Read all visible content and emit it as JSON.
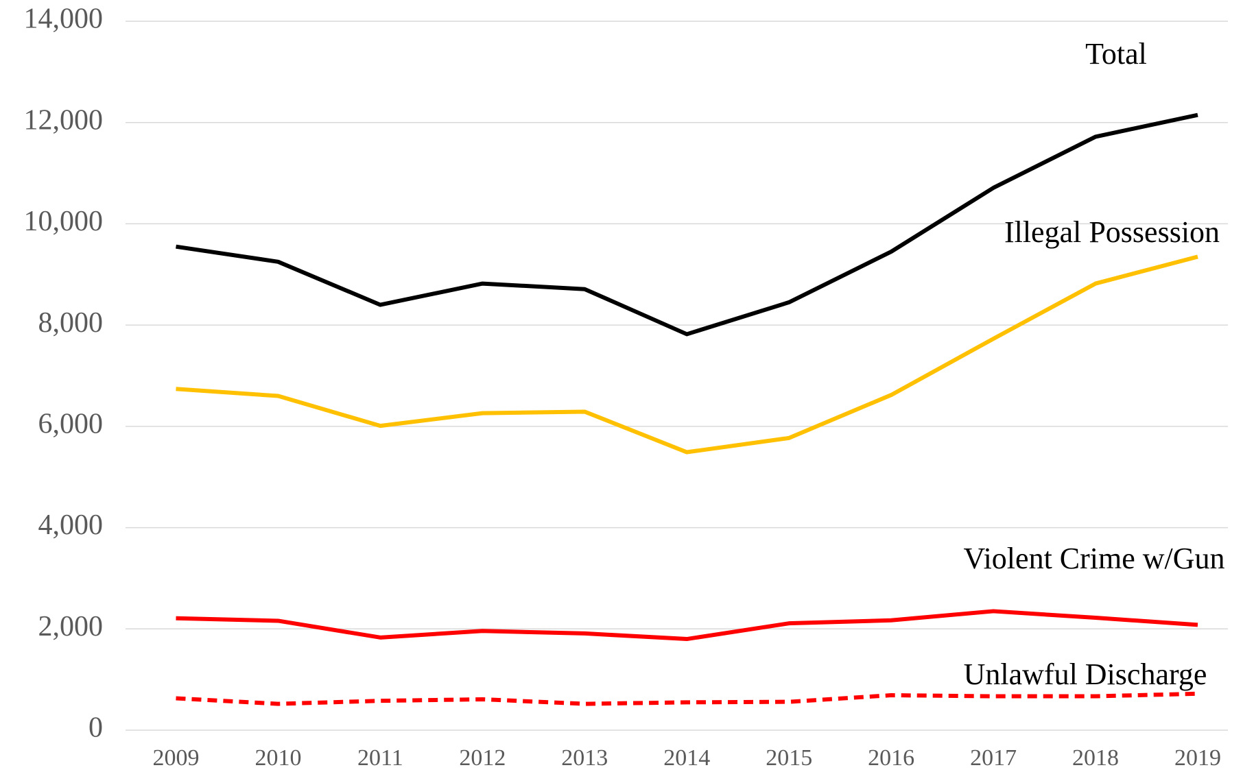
{
  "chart_data": {
    "type": "line",
    "categories": [
      "2009",
      "2010",
      "2011",
      "2012",
      "2013",
      "2014",
      "2015",
      "2016",
      "2017",
      "2018",
      "2019"
    ],
    "series": [
      {
        "name": "Total",
        "color": "#000000",
        "style": "solid",
        "values": [
          9550,
          9250,
          8400,
          8820,
          8710,
          7820,
          8450,
          9450,
          10710,
          11720,
          12150
        ]
      },
      {
        "name": "Illegal Possession",
        "color": "#ffc000",
        "style": "solid",
        "values": [
          6740,
          6600,
          6010,
          6260,
          6290,
          5490,
          5770,
          6620,
          7730,
          8820,
          9350
        ]
      },
      {
        "name": "Violent Crime w/Gun",
        "color": "#ff0000",
        "style": "solid",
        "values": [
          2210,
          2160,
          1830,
          1960,
          1910,
          1800,
          2110,
          2170,
          2350,
          2220,
          2080
        ]
      },
      {
        "name": "Unlawful Discharge",
        "color": "#ff0000",
        "style": "dashed",
        "values": [
          630,
          520,
          580,
          610,
          520,
          550,
          560,
          690,
          670,
          670,
          720
        ]
      }
    ],
    "ylim": [
      0,
      14000
    ],
    "yticks": [
      0,
      {
        "value": 2000,
        "label": "2,000"
      },
      {
        "value": 4000,
        "label": "4,000"
      },
      {
        "value": 6000,
        "label": "6,000"
      },
      {
        "value": 8000,
        "label": "8,000"
      },
      {
        "value": 10000,
        "label": "10,000"
      },
      {
        "value": 12000,
        "label": "12,000"
      },
      {
        "value": 14000,
        "label": "14,000"
      }
    ],
    "grid": true
  }
}
